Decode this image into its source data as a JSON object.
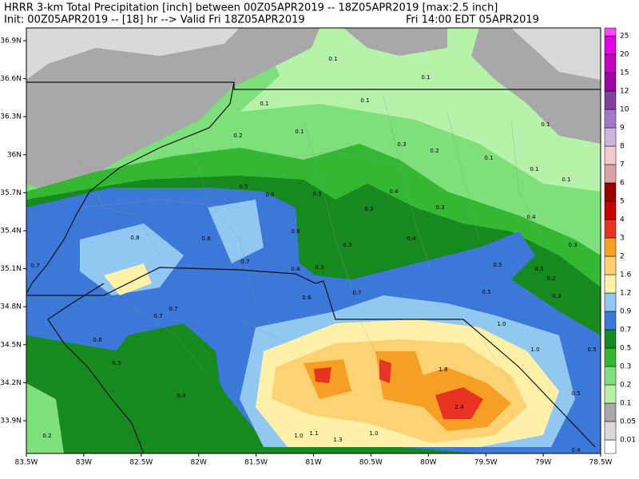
{
  "header": {
    "title": "HRRR 3-km Total Precipitation [inch]   between 00Z05APR2019 -- 18Z05APR2019   [max:2.5 inch]",
    "init": "Init: 00Z05APR2019 -- [18] hr --> Valid Fri 18Z05APR2019",
    "local_time": "Fri 14:00 EDT 05APR2019"
  },
  "map": {
    "lat_labels": [
      "36.9N",
      "36.6N",
      "36.3N",
      "36N",
      "35.7N",
      "35.4N",
      "35.1N",
      "34.8N",
      "34.5N",
      "34.2N",
      "33.9N"
    ],
    "lon_labels": [
      "83.5W",
      "83W",
      "82.5W",
      "82W",
      "81.5W",
      "81W",
      "80.5W",
      "80W",
      "79.5W",
      "79W",
      "78.5W"
    ],
    "point_labels": [
      "0.1",
      "0.1",
      "0.1",
      "0.1",
      "0.1",
      "0.2",
      "0.3",
      "0.2",
      "0.1",
      "0.1",
      "0.1",
      "0.1",
      "0.5",
      "0.6",
      "0.5",
      "0.4",
      "0.3",
      "0.3",
      "0.4",
      "0.8",
      "0.8",
      "0.8",
      "0.3",
      "0.4",
      "0.3",
      "0.7",
      "0.7",
      "0.4",
      "0.3",
      "0.5",
      "0.5",
      "0.2",
      "0.7",
      "0.7",
      "0.6",
      "0.7",
      "0.5",
      "0.3",
      "0.8",
      "1.0",
      "1.0",
      "0.5",
      "0.5",
      "1.8",
      "0.5",
      "0.4",
      "2.4",
      "0.2",
      "1.0",
      "1.1",
      "1.3",
      "1.0",
      "0.4"
    ]
  },
  "legend": {
    "levels": [
      {
        "label": "0.01",
        "color": "#d9d9d9"
      },
      {
        "label": "0.05",
        "color": "#a8a8a8"
      },
      {
        "label": "0.1",
        "color": "#b6f2aa"
      },
      {
        "label": "0.2",
        "color": "#7ee07a"
      },
      {
        "label": "0.3",
        "color": "#34b834"
      },
      {
        "label": "0.5",
        "color": "#168a1e"
      },
      {
        "label": "0.7",
        "color": "#3c78d8"
      },
      {
        "label": "0.9",
        "color": "#90c8f2"
      },
      {
        "label": "1.2",
        "color": "#fff2a8"
      },
      {
        "label": "1.6",
        "color": "#fcd274"
      },
      {
        "label": "2",
        "color": "#f5a024"
      },
      {
        "label": "3",
        "color": "#e83222"
      },
      {
        "label": "4",
        "color": "#c80000"
      },
      {
        "label": "5",
        "color": "#9a0000"
      },
      {
        "label": "6",
        "color": "#d8a4a4"
      },
      {
        "label": "7",
        "color": "#f2cccc"
      },
      {
        "label": "8",
        "color": "#c8b6de"
      },
      {
        "label": "9",
        "color": "#a07ac8"
      },
      {
        "label": "10",
        "color": "#8040a0"
      },
      {
        "label": "12",
        "color": "#a000a0"
      },
      {
        "label": "15",
        "color": "#c400c4"
      },
      {
        "label": "20",
        "color": "#e400e4"
      },
      {
        "label": "25",
        "color": "#ff44ff"
      }
    ]
  }
}
